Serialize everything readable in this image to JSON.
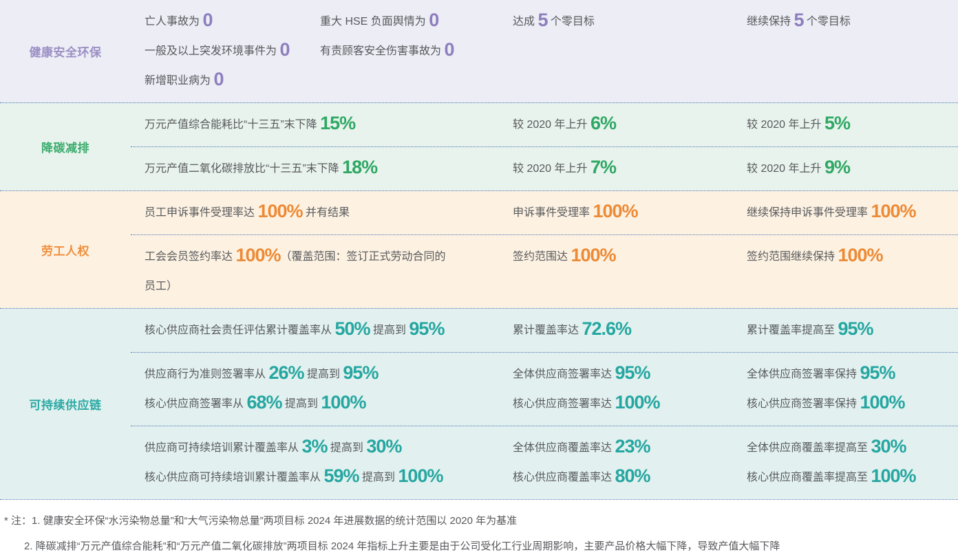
{
  "table": {
    "rows": [
      {
        "category": "健康安全环保",
        "colors": {
          "bg": "#ECEDF5",
          "label": "#9C8FC5",
          "accent": "#8E7EBE"
        },
        "subrows": [
          {
            "main": [
              [
                {
                  "t": "亡人事故为 "
                },
                {
                  "t": "0",
                  "em": true
                }
              ],
              [
                {
                  "t": "一般及以上突发环境事件为 "
                },
                {
                  "t": "0",
                  "em": true
                }
              ],
              [
                {
                  "t": "新增职业病为 "
                },
                {
                  "t": "0",
                  "em": true
                }
              ]
            ],
            "main2": [
              [
                {
                  "t": "重大 HSE 负面舆情为 "
                },
                {
                  "t": "0",
                  "em": true
                }
              ],
              [
                {
                  "t": "有责顾客安全伤害事故为 "
                },
                {
                  "t": "0",
                  "em": true
                }
              ]
            ],
            "mid": [
              [
                {
                  "t": "达成 "
                },
                {
                  "t": "5",
                  "em": true
                },
                {
                  "t": " 个零目标"
                }
              ]
            ],
            "right": [
              [
                {
                  "t": "继续保持 "
                },
                {
                  "t": "5",
                  "em": true
                },
                {
                  "t": " 个零目标"
                }
              ]
            ]
          }
        ]
      },
      {
        "category": "降碳减排",
        "colors": {
          "bg": "#E8F3ED",
          "label": "#3CAC6E",
          "accent": "#2FA864"
        },
        "subrows": [
          {
            "main": [
              [
                {
                  "t": "万元产值综合能耗比“十三五”末下降 "
                },
                {
                  "t": "15%",
                  "em": true
                }
              ]
            ],
            "mid": [
              [
                {
                  "t": "较 2020 年上升 "
                },
                {
                  "t": "6%",
                  "em": true
                }
              ]
            ],
            "right": [
              [
                {
                  "t": "较 2020 年上升 "
                },
                {
                  "t": "5%",
                  "em": true
                }
              ]
            ]
          },
          {
            "main": [
              [
                {
                  "t": "万元产值二氧化碳排放比“十三五”末下降 "
                },
                {
                  "t": "18%",
                  "em": true
                }
              ]
            ],
            "mid": [
              [
                {
                  "t": "较 2020 年上升 "
                },
                {
                  "t": "7%",
                  "em": true
                }
              ]
            ],
            "right": [
              [
                {
                  "t": "较 2020 年上升 "
                },
                {
                  "t": "9%",
                  "em": true
                }
              ]
            ]
          }
        ]
      },
      {
        "category": "劳工人权",
        "colors": {
          "bg": "#FDF2E2",
          "label": "#F08E3E",
          "accent": "#ED8A36"
        },
        "subrows": [
          {
            "main": [
              [
                {
                  "t": "员工申诉事件受理率达 "
                },
                {
                  "t": "100%",
                  "em": true
                },
                {
                  "t": " 并有结果"
                }
              ]
            ],
            "mid": [
              [
                {
                  "t": "申诉事件受理率 "
                },
                {
                  "t": "100%",
                  "em": true
                }
              ]
            ],
            "right": [
              [
                {
                  "t": "继续保持申诉事件受理率 "
                },
                {
                  "t": "100%",
                  "em": true
                }
              ]
            ]
          },
          {
            "main": [
              [
                {
                  "t": "工会会员签约率达 "
                },
                {
                  "t": "100%",
                  "em": true
                },
                {
                  "t": "（覆盖范围：签订正式劳动合同的"
                }
              ],
              [
                {
                  "t": "员工）"
                }
              ]
            ],
            "mid": [
              [
                {
                  "t": "签约范围达 "
                },
                {
                  "t": "100%",
                  "em": true
                }
              ]
            ],
            "right": [
              [
                {
                  "t": "签约范围继续保持 "
                },
                {
                  "t": "100%",
                  "em": true
                }
              ]
            ]
          }
        ]
      },
      {
        "category": "可持续供应链",
        "colors": {
          "bg": "#E2F1EF",
          "label": "#2BA9A4",
          "accent": "#26A6A1"
        },
        "subrows": [
          {
            "main": [
              [
                {
                  "t": "核心供应商社会责任评估累计覆盖率从 "
                },
                {
                  "t": "50%",
                  "em": true
                },
                {
                  "t": " 提高到 "
                },
                {
                  "t": "95%",
                  "em": true
                }
              ]
            ],
            "mid": [
              [
                {
                  "t": "累计覆盖率达 "
                },
                {
                  "t": "72.6%",
                  "em": true
                }
              ]
            ],
            "right": [
              [
                {
                  "t": "累计覆盖率提高至 "
                },
                {
                  "t": "95%",
                  "em": true
                }
              ]
            ]
          },
          {
            "main": [
              [
                {
                  "t": "供应商行为准则签署率从 "
                },
                {
                  "t": "26%",
                  "em": true
                },
                {
                  "t": " 提高到 "
                },
                {
                  "t": "95%",
                  "em": true
                }
              ],
              [
                {
                  "t": "核心供应商签署率从 "
                },
                {
                  "t": "68%",
                  "em": true
                },
                {
                  "t": " 提高到 "
                },
                {
                  "t": "100%",
                  "em": true
                }
              ]
            ],
            "mid": [
              [
                {
                  "t": "全体供应商签署率达 "
                },
                {
                  "t": "95%",
                  "em": true
                }
              ],
              [
                {
                  "t": "核心供应商签署率达 "
                },
                {
                  "t": "100%",
                  "em": true
                }
              ]
            ],
            "right": [
              [
                {
                  "t": "全体供应商签署率保持 "
                },
                {
                  "t": "95%",
                  "em": true
                }
              ],
              [
                {
                  "t": "核心供应商签署率保持 "
                },
                {
                  "t": "100%",
                  "em": true
                }
              ]
            ]
          },
          {
            "main": [
              [
                {
                  "t": "供应商可持续培训累计覆盖率从 "
                },
                {
                  "t": "3%",
                  "em": true
                },
                {
                  "t": " 提高到 "
                },
                {
                  "t": "30%",
                  "em": true
                }
              ],
              [
                {
                  "t": "核心供应商可持续培训累计覆盖率从 "
                },
                {
                  "t": "59%",
                  "em": true
                },
                {
                  "t": " 提高到 "
                },
                {
                  "t": "100%",
                  "em": true
                }
              ]
            ],
            "mid": [
              [
                {
                  "t": "全体供应商覆盖率达 "
                },
                {
                  "t": "23%",
                  "em": true
                }
              ],
              [
                {
                  "t": "核心供应商覆盖率达 "
                },
                {
                  "t": "80%",
                  "em": true
                }
              ]
            ],
            "right": [
              [
                {
                  "t": "全体供应商覆盖率提高至 "
                },
                {
                  "t": "30%",
                  "em": true
                }
              ],
              [
                {
                  "t": "核心供应商覆盖率提高至 "
                },
                {
                  "t": "100%",
                  "em": true
                }
              ]
            ]
          }
        ]
      }
    ]
  },
  "footnotes": [
    "* 注：1. 健康安全环保“水污染物总量”和“大气污染物总量”两项目标 2024 年进展数据的统计范围以 2020 年为基准",
    "2. 降碳减排“万元产值综合能耗”和“万元产值二氧化碳排放”两项目标 2024 年指标上升主要是由于公司受化工行业周期影响，主要产品价格大幅下降，导致产值大幅下降"
  ],
  "style_tokens": {
    "separator_color": "#4A73B3",
    "body_text_color": "#58595C"
  }
}
